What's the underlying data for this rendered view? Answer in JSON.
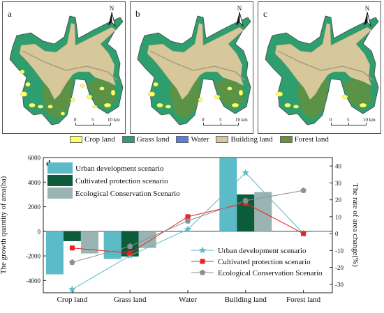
{
  "maps": {
    "panels": [
      {
        "letter": "a",
        "north": "N"
      },
      {
        "letter": "b",
        "north": "N"
      },
      {
        "letter": "c",
        "north": "N"
      }
    ],
    "scale_labels": [
      "0",
      "5",
      "10 km"
    ],
    "legend": [
      {
        "label": "Crop land",
        "color": "#ffff66"
      },
      {
        "label": "Grass land",
        "color": "#2f9e6e"
      },
      {
        "label": "Water",
        "color": "#5a7ee0"
      },
      {
        "label": "Building land",
        "color": "#d6c89a"
      },
      {
        "label": "Forest land",
        "color": "#6b8f3a"
      }
    ]
  },
  "chart_data": {
    "type": "bar",
    "panel_label": "d",
    "categories": [
      "Crop land",
      "Grass land",
      "Water",
      "Building land",
      "Forest land"
    ],
    "ylabel_left": "The growth quantity of area(ha)",
    "ylabel_right": "The rate of area change(%)",
    "ylim_left": [
      -5000,
      6000
    ],
    "yticks_left": [
      -4000,
      -2000,
      0,
      2000,
      4000,
      6000
    ],
    "ylim_right": [
      -35,
      45
    ],
    "yticks_right": [
      -30,
      -20,
      -10,
      0,
      10,
      20,
      30,
      40
    ],
    "bar_series": [
      {
        "name": "Urban development scenario",
        "color": "#5bbcc8",
        "values": [
          -3500,
          -2250,
          0,
          5950,
          0
        ]
      },
      {
        "name": "Cultivated protection scenario",
        "color": "#0c5c3c",
        "values": [
          -800,
          -2050,
          0,
          3000,
          0
        ]
      },
      {
        "name": "Ecological Conservation Scenario",
        "color": "#9ab4b4",
        "values": [
          -1800,
          -1350,
          0,
          3200,
          50
        ]
      }
    ],
    "line_series": [
      {
        "name": "Urban development scenario",
        "color": "#5bbcc8",
        "marker": "star",
        "values": [
          -33,
          -13,
          2.5,
          36,
          0
        ]
      },
      {
        "name": "Cultivated protection scenario",
        "color": "#e8241f",
        "marker": "square",
        "values": [
          -8.5,
          -11.5,
          10,
          18,
          0
        ]
      },
      {
        "name": "Ecological Conservation Scenario",
        "color": "#8a9294",
        "marker": "pentagon",
        "values": [
          -17,
          -7.5,
          7.5,
          19.5,
          25.5
        ]
      }
    ],
    "legend_bars_position": "top-left",
    "legend_lines_position": "bottom-right",
    "grid": false
  }
}
